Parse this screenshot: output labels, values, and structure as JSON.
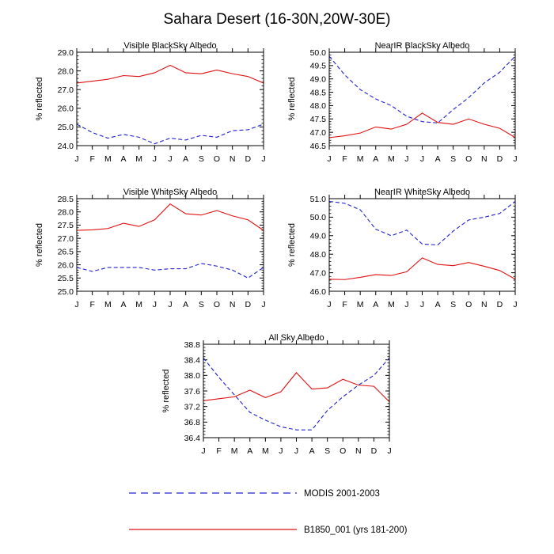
{
  "title": "Sahara Desert (16-30N,20W-30E)",
  "colors": {
    "modis": "#2020d0",
    "model": "#e01010"
  },
  "legend": {
    "modis": "MODIS 2001-2003",
    "model": "B1850_001 (yrs 181-200)"
  },
  "chart_data": [
    {
      "type": "line",
      "title": "Visible BlackSky Albedo",
      "ylabel": "% reflected",
      "ylim": [
        24.0,
        29.0
      ],
      "yticks": [
        "24.0",
        "25.0",
        "26.0",
        "27.0",
        "28.0",
        "29.0"
      ],
      "ytick_values": [
        24.0,
        25.0,
        26.0,
        27.0,
        28.0,
        29.0
      ],
      "categories": [
        "J",
        "F",
        "M",
        "A",
        "M",
        "J",
        "J",
        "A",
        "S",
        "O",
        "N",
        "D",
        "J"
      ],
      "series": [
        {
          "name": "MODIS 2001-2003",
          "style": "dashed",
          "values": [
            25.15,
            24.7,
            24.4,
            24.6,
            24.45,
            24.1,
            24.4,
            24.3,
            24.55,
            24.45,
            24.8,
            24.85,
            25.15
          ]
        },
        {
          "name": "B1850_001 (yrs 181-200)",
          "style": "solid",
          "values": [
            27.35,
            27.45,
            27.55,
            27.75,
            27.7,
            27.9,
            28.3,
            27.9,
            27.85,
            28.05,
            27.85,
            27.7,
            27.35
          ]
        }
      ]
    },
    {
      "type": "line",
      "title": "NearIR BlackSky Albedo",
      "ylabel": "% reflected",
      "ylim": [
        46.5,
        50.0
      ],
      "yticks": [
        "46.5",
        "47.0",
        "47.5",
        "48.0",
        "48.5",
        "49.0",
        "49.5",
        "50.0"
      ],
      "ytick_values": [
        46.5,
        47.0,
        47.5,
        48.0,
        48.5,
        49.0,
        49.5,
        50.0
      ],
      "categories": [
        "J",
        "F",
        "M",
        "A",
        "M",
        "J",
        "J",
        "A",
        "S",
        "O",
        "N",
        "D",
        "J"
      ],
      "series": [
        {
          "name": "MODIS 2001-2003",
          "style": "dashed",
          "values": [
            49.85,
            49.15,
            48.6,
            48.25,
            48.0,
            47.6,
            47.4,
            47.35,
            47.85,
            48.3,
            48.85,
            49.25,
            49.85
          ]
        },
        {
          "name": "B1850_001 (yrs 181-200)",
          "style": "solid",
          "values": [
            46.8,
            46.87,
            46.97,
            47.2,
            47.12,
            47.3,
            47.72,
            47.37,
            47.3,
            47.5,
            47.3,
            47.15,
            46.8
          ]
        }
      ]
    },
    {
      "type": "line",
      "title": "Visible WhiteSky Albedo",
      "ylabel": "% reflected",
      "ylim": [
        25.0,
        28.5
      ],
      "yticks": [
        "25.0",
        "25.5",
        "26.0",
        "26.5",
        "27.0",
        "27.5",
        "28.0",
        "28.5"
      ],
      "ytick_values": [
        25.0,
        25.5,
        26.0,
        26.5,
        27.0,
        27.5,
        28.0,
        28.5
      ],
      "categories": [
        "J",
        "F",
        "M",
        "A",
        "M",
        "J",
        "J",
        "A",
        "S",
        "O",
        "N",
        "D",
        "J"
      ],
      "series": [
        {
          "name": "MODIS 2001-2003",
          "style": "dashed",
          "values": [
            25.9,
            25.75,
            25.9,
            25.9,
            25.9,
            25.8,
            25.85,
            25.85,
            26.05,
            25.95,
            25.8,
            25.5,
            25.9
          ]
        },
        {
          "name": "B1850_001 (yrs 181-200)",
          "style": "solid",
          "values": [
            27.3,
            27.32,
            27.37,
            27.57,
            27.45,
            27.7,
            28.3,
            27.93,
            27.88,
            28.05,
            27.85,
            27.7,
            27.3
          ]
        }
      ]
    },
    {
      "type": "line",
      "title": "NearIR WhiteSky Albedo",
      "ylabel": "% reflected",
      "ylim": [
        46.0,
        51.0
      ],
      "yticks": [
        "46.0",
        "47.0",
        "48.0",
        "49.0",
        "50.0",
        "51.0"
      ],
      "ytick_values": [
        46.0,
        47.0,
        48.0,
        49.0,
        50.0,
        51.0
      ],
      "categories": [
        "J",
        "F",
        "M",
        "A",
        "M",
        "J",
        "J",
        "A",
        "S",
        "O",
        "N",
        "D",
        "J"
      ],
      "series": [
        {
          "name": "MODIS 2001-2003",
          "style": "dashed",
          "values": [
            50.85,
            50.75,
            50.4,
            49.35,
            49.0,
            49.3,
            48.55,
            48.5,
            49.25,
            49.85,
            50.0,
            50.2,
            50.85
          ]
        },
        {
          "name": "B1850_001 (yrs 181-200)",
          "style": "solid",
          "values": [
            46.65,
            46.63,
            46.75,
            46.9,
            46.85,
            47.05,
            47.8,
            47.45,
            47.38,
            47.55,
            47.35,
            47.12,
            46.65
          ]
        }
      ]
    },
    {
      "type": "line",
      "title": "All Sky Albedo",
      "ylabel": "% reflected",
      "ylim": [
        36.4,
        38.8
      ],
      "yticks": [
        "36.4",
        "36.8",
        "37.2",
        "37.6",
        "38.0",
        "38.4",
        "38.8"
      ],
      "ytick_values": [
        36.4,
        36.8,
        37.2,
        37.6,
        38.0,
        38.4,
        38.8
      ],
      "categories": [
        "J",
        "F",
        "M",
        "A",
        "M",
        "J",
        "J",
        "A",
        "S",
        "O",
        "N",
        "D",
        "J"
      ],
      "series": [
        {
          "name": "MODIS 2001-2003",
          "style": "dashed",
          "values": [
            38.45,
            37.95,
            37.5,
            37.05,
            36.85,
            36.68,
            36.6,
            36.6,
            37.1,
            37.45,
            37.75,
            38.0,
            38.45
          ]
        },
        {
          "name": "B1850_001 (yrs 181-200)",
          "style": "solid",
          "values": [
            37.35,
            37.4,
            37.45,
            37.62,
            37.43,
            37.58,
            38.07,
            37.65,
            37.68,
            37.9,
            37.75,
            37.72,
            37.32
          ]
        }
      ]
    }
  ]
}
